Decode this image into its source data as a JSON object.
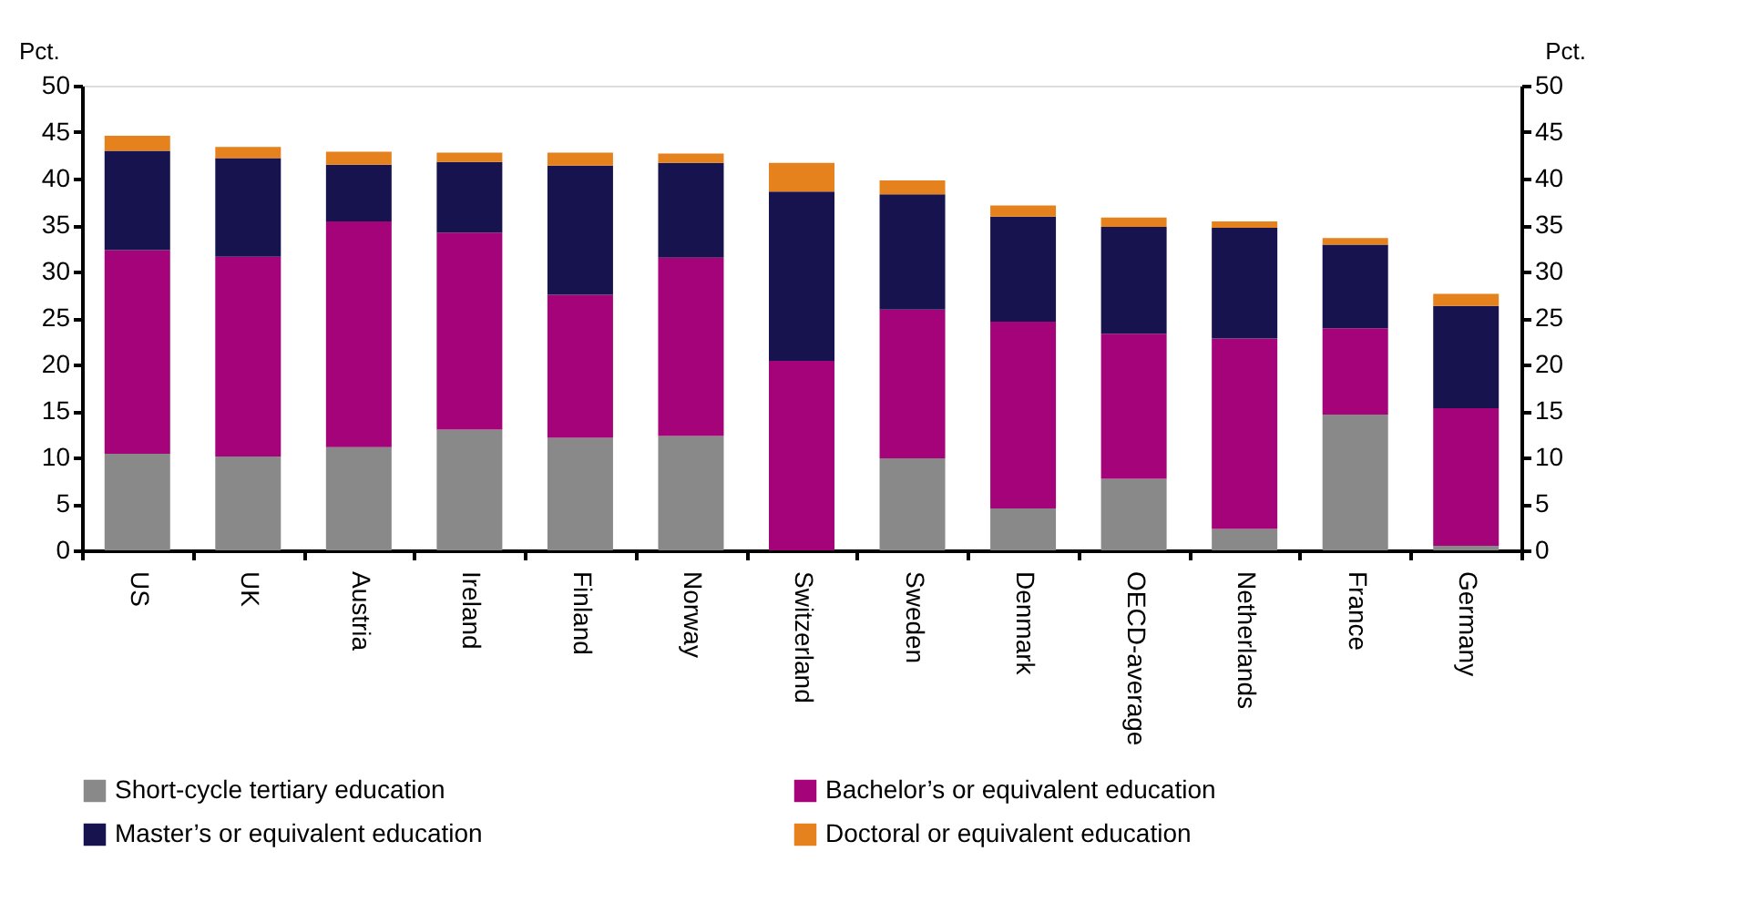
{
  "chart_data": {
    "type": "bar",
    "stacked": true,
    "ylabel": "Pct.",
    "y2label": "Pct.",
    "categories": [
      "US",
      "UK",
      "Austria",
      "Ireland",
      "Finland",
      "Norway",
      "Switzerland",
      "Sweden",
      "Denmark",
      "OECD-average",
      "Netherlands",
      "France",
      "Germany"
    ],
    "series": [
      {
        "name": "Short-cycle tertiary education",
        "color": "#898989",
        "values": [
          10.4,
          10.1,
          11.1,
          13.0,
          12.1,
          12.3,
          0,
          9.9,
          4.5,
          7.7,
          2.3,
          14.6,
          0.5
        ]
      },
      {
        "name": "Bachelor’s or equivalent education",
        "color": "#a50379",
        "values": [
          21.9,
          21.5,
          24.3,
          21.2,
          15.4,
          19.2,
          20.4,
          16.0,
          20.1,
          15.6,
          20.5,
          9.3,
          14.8
        ]
      },
      {
        "name": "Master’s or equivalent education",
        "color": "#16134e",
        "values": [
          10.7,
          10.6,
          6.1,
          7.6,
          13.9,
          10.2,
          18.2,
          12.4,
          11.3,
          11.5,
          11.9,
          9.0,
          11.0
        ]
      },
      {
        "name": "Doctoral or equivalent education",
        "color": "#e6821e",
        "values": [
          1.6,
          1.2,
          1.4,
          1.0,
          1.4,
          1.0,
          3.1,
          1.5,
          1.2,
          1.0,
          0.7,
          0.7,
          1.3
        ]
      }
    ],
    "ylim": [
      0,
      50
    ],
    "yticks": [
      0,
      5,
      10,
      15,
      20,
      25,
      30,
      35,
      40,
      45,
      50
    ],
    "y2lim": [
      0,
      50
    ],
    "y2ticks": [
      0,
      5,
      10,
      15,
      20,
      25,
      30,
      35,
      40,
      45,
      50
    ],
    "grid": false,
    "legend": "bottom"
  }
}
